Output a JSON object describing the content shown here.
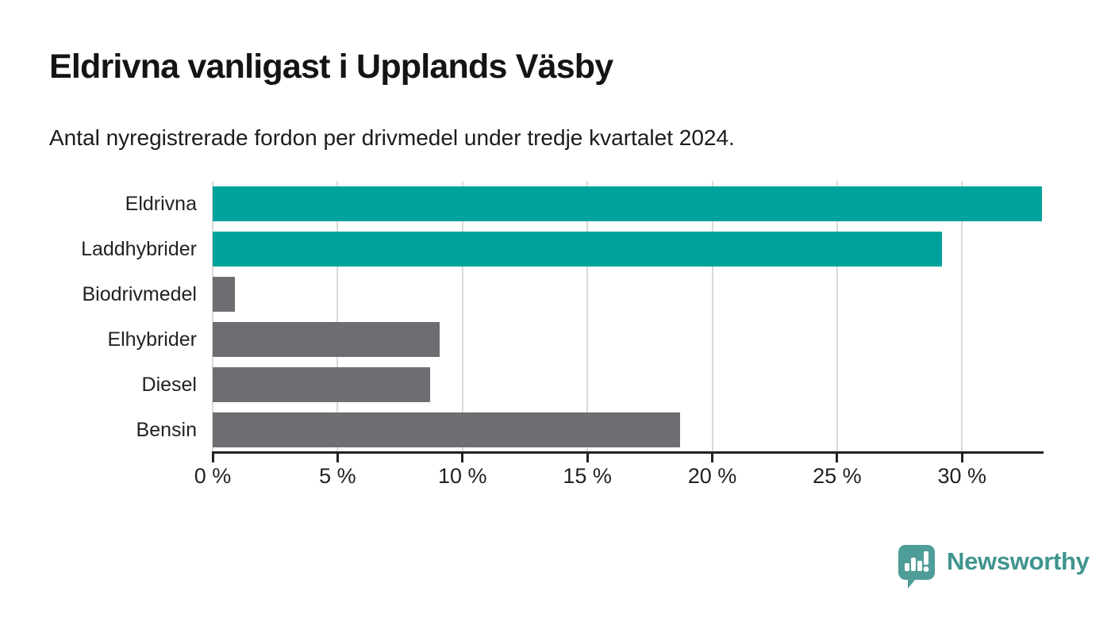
{
  "title": "Eldrivna vanligast i Upplands Väsby",
  "subtitle": "Antal nyregistrerade fordon per drivmedel under tredje kvartalet 2024.",
  "chart_data": {
    "type": "bar",
    "orientation": "horizontal",
    "title": "Eldrivna vanligast i Upplands Väsby",
    "subtitle": "Antal nyregistrerade fordon per drivmedel under tredje kvartalet 2024.",
    "categories": [
      "Eldrivna",
      "Laddhybrider",
      "Biodrivmedel",
      "Elhybrider",
      "Diesel",
      "Bensin"
    ],
    "values": [
      33.2,
      29.2,
      0.9,
      9.1,
      8.7,
      18.7
    ],
    "unit": "%",
    "xlim": [
      0,
      33.2
    ],
    "x_ticks": [
      0,
      5,
      10,
      15,
      20,
      25,
      30
    ],
    "x_tick_labels": [
      "0 %",
      "5 %",
      "10 %",
      "15 %",
      "20 %",
      "25 %",
      "30 %"
    ],
    "bar_colors": [
      "#00A39B",
      "#00A39B",
      "#6E6E72",
      "#6E6E72",
      "#6E6E72",
      "#6E6E72"
    ],
    "highlight_color": "#00A39B",
    "default_color": "#6E6E72",
    "gridline_color": "#DADADA",
    "axis_color": "#222222",
    "grid": true,
    "legend": false
  },
  "branding": {
    "logo_text": "Newsworthy",
    "logo_text_color": "#40948E",
    "logo_bubble_color": "#4F9D98"
  }
}
